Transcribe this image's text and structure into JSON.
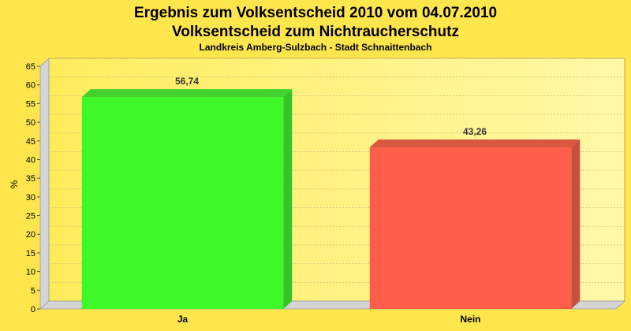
{
  "chart_data": {
    "type": "bar",
    "title": "Ergebnis zum Volksentscheid 2010 vom 04.07.2010",
    "subtitle": "Volksentscheid zum Nichtraucherschutz",
    "subtitle2": "Landkreis Amberg-Sulzbach - Stadt Schnaittenbach",
    "ylabel": "%",
    "xlabel": "",
    "categories": [
      "Ja",
      "Nein"
    ],
    "values": [
      56.74,
      43.26
    ],
    "value_labels": [
      "56,74",
      "43,26"
    ],
    "bar_colors": [
      "#3EF82A",
      "#FF5F4A"
    ],
    "bar_side_colors": [
      "#34C424",
      "#C8503E"
    ],
    "bar_top_colors": [
      "#43D22D",
      "#D9573F"
    ],
    "ylim": [
      0,
      65
    ],
    "yticks": [
      "0",
      "5",
      "10",
      "15",
      "20",
      "25",
      "30",
      "35",
      "40",
      "45",
      "50",
      "55",
      "60",
      "65"
    ],
    "grid": true,
    "legend": "none",
    "background_color": "#FFE64D",
    "plot_color": "#FFF6A0"
  }
}
